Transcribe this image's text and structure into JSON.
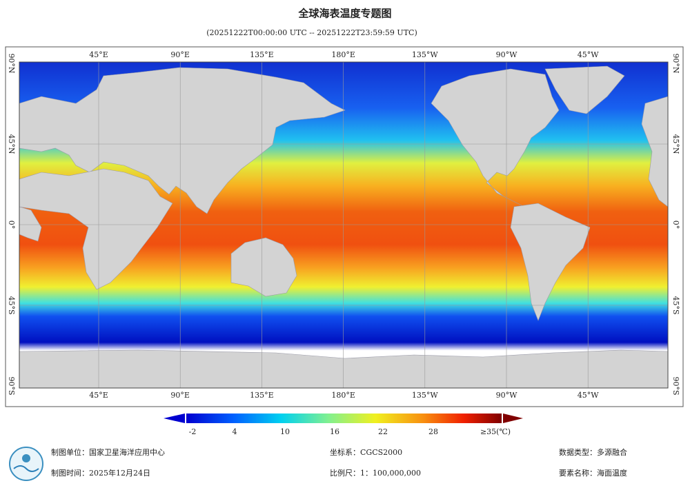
{
  "title": "全球海表温度专题图",
  "subtitle": "(20251222T00:00:00 UTC -- 20251222T23:59:59 UTC)",
  "map": {
    "longitude_labels": [
      "45°E",
      "90°E",
      "135°E",
      "180°E",
      "135°W",
      "90°W",
      "45°W"
    ],
    "latitude_labels": [
      "90°N",
      "45°N",
      "0°",
      "45°S",
      "90°S"
    ]
  },
  "colorbar": {
    "labels": [
      "-2",
      "4",
      "10",
      "16",
      "22",
      "28",
      "≥35(℃)"
    ]
  },
  "footer": {
    "unit": "制图单位：国家卫星海洋应用中心",
    "time": "制图时间：2025年12月24日",
    "crs": "坐标系：CGCS2000",
    "scale": "比例尺：1：100,000,000",
    "data_type": "数据类型：多源融合",
    "element": "要素名称：海面温度"
  }
}
